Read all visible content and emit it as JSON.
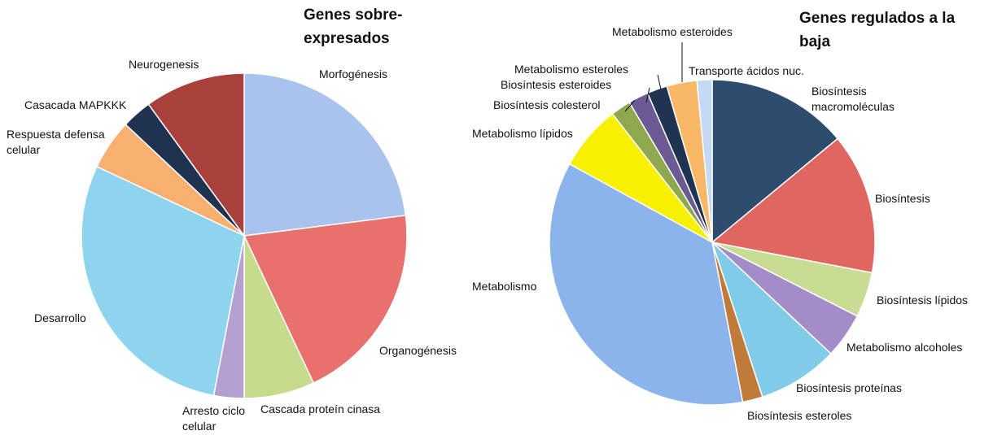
{
  "chart_data": [
    {
      "type": "pie",
      "title": "Genes sobre-expresados",
      "categories": [
        "Morfogénesis",
        "Organogénesis",
        "Cascada proteín cinasa",
        "Arresto ciclo celular",
        "Desarrollo",
        "Respuesta defensa celular",
        "Casacada MAPKKK",
        "Neurogenesis"
      ],
      "values": [
        23,
        20,
        7,
        3,
        29,
        5,
        3,
        10
      ],
      "colors": [
        "#a8c4ee",
        "#e8716e",
        "#c6dc8c",
        "#b4a0d0",
        "#8fd4ee",
        "#f8b070",
        "#1f3350",
        "#a8413c"
      ]
    },
    {
      "type": "pie",
      "title": "Genes regulados a la baja",
      "categories": [
        "Biosíntesis macromoléculas",
        "Biosíntesis",
        "Biosíntesis lípidos",
        "Metabolismo alcoholes",
        "Biosíntesis proteínas",
        "Biosíntesis esteroles",
        "Metabolismo",
        "Metabolismo lípidos",
        "Biosíntesis colesterol",
        "Biosíntesis esteroides",
        "Metabolismo esteroles",
        "Metabolismo esteroides",
        "Transporte ácidos nuc."
      ],
      "values": [
        14,
        14,
        4.5,
        4.5,
        8,
        2,
        36,
        6.5,
        2,
        2,
        2,
        3,
        1.5
      ],
      "colors": [
        "#2e4c6e",
        "#e06660",
        "#c8dc94",
        "#a48cc8",
        "#80cce8",
        "#c07a3a",
        "#8cb4ec",
        "#f8f000",
        "#8ea850",
        "#6c5a94",
        "#1e3450",
        "#f8b868",
        "#c4daf4"
      ]
    }
  ]
}
